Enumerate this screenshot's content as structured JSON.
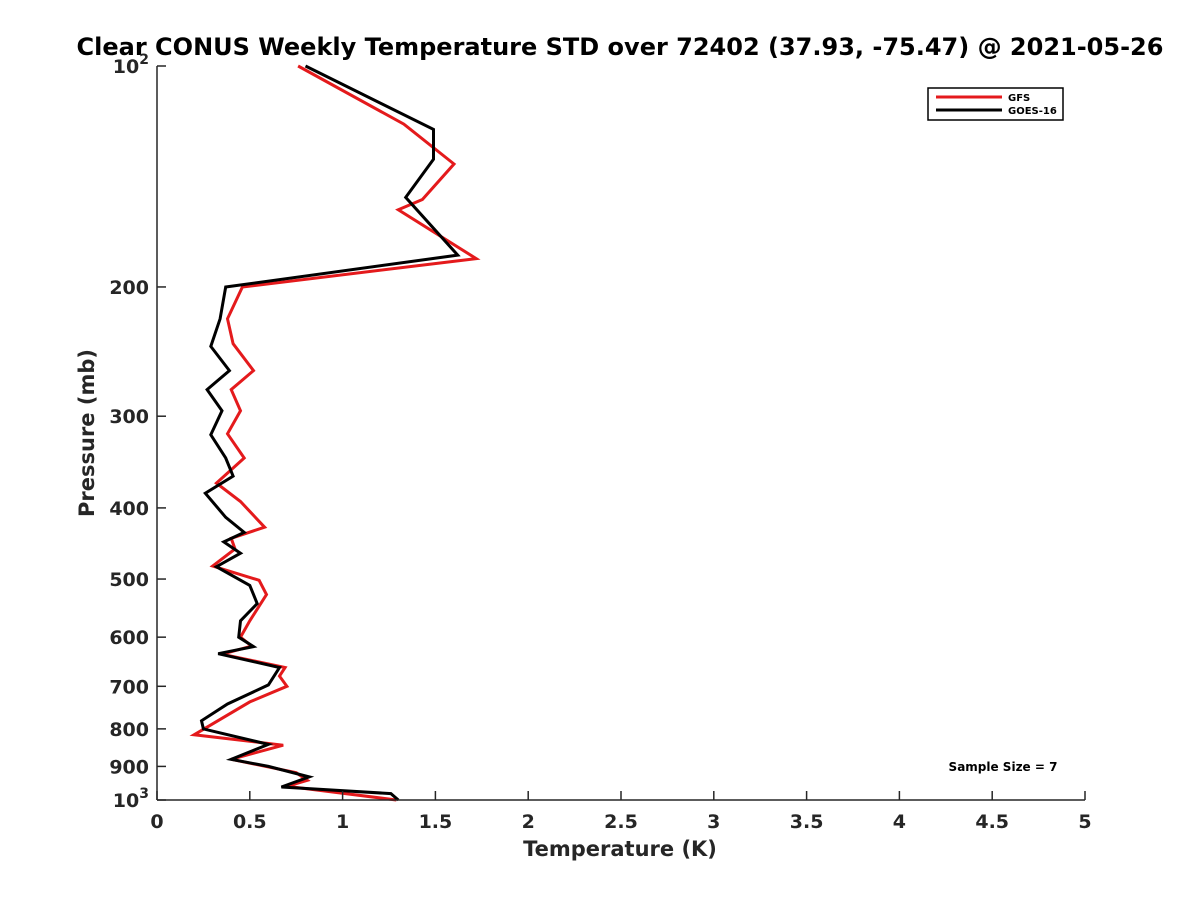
{
  "chart_data": {
    "type": "line",
    "title": "Clear CONUS Weekly Temperature STD over 72402 (37.93, -75.47) @ 2021-05-26",
    "xlabel": "Temperature (K)",
    "ylabel": "Pressure (mb)",
    "xlim": [
      0,
      5
    ],
    "ylim": [
      100,
      1000
    ],
    "yscale": "log",
    "y_reversed": true,
    "xticks": [
      0,
      0.5,
      1,
      1.5,
      2,
      2.5,
      3,
      3.5,
      4,
      4.5,
      5
    ],
    "xtick_labels": [
      "0",
      "0.5",
      "1",
      "1.5",
      "2",
      "2.5",
      "3",
      "3.5",
      "4",
      "4.5",
      "5"
    ],
    "yticks": [
      100,
      200,
      300,
      400,
      500,
      600,
      700,
      800,
      900,
      1000
    ],
    "ytick_labels": [
      {
        "base": "10",
        "exp": "2"
      },
      {
        "base": "200",
        "exp": ""
      },
      {
        "base": "300",
        "exp": ""
      },
      {
        "base": "400",
        "exp": ""
      },
      {
        "base": "500",
        "exp": ""
      },
      {
        "base": "600",
        "exp": ""
      },
      {
        "base": "700",
        "exp": ""
      },
      {
        "base": "800",
        "exp": ""
      },
      {
        "base": "900",
        "exp": ""
      },
      {
        "base": "10",
        "exp": "3"
      }
    ],
    "legend": {
      "position": "top-right",
      "entries": [
        "GFS",
        "GOES-16"
      ]
    },
    "annotation": "Sample Size = 7",
    "series": [
      {
        "name": "GFS",
        "color": "#e41a1c",
        "points": [
          [
            0.76,
            100
          ],
          [
            1.33,
            120
          ],
          [
            1.6,
            136
          ],
          [
            1.43,
            152
          ],
          [
            1.3,
            157
          ],
          [
            1.72,
            183
          ],
          [
            0.46,
            200
          ],
          [
            0.38,
            221
          ],
          [
            0.41,
            239
          ],
          [
            0.52,
            260
          ],
          [
            0.4,
            276
          ],
          [
            0.45,
            295
          ],
          [
            0.38,
            317
          ],
          [
            0.47,
            342
          ],
          [
            0.32,
            370
          ],
          [
            0.45,
            392
          ],
          [
            0.58,
            425
          ],
          [
            0.4,
            440
          ],
          [
            0.42,
            455
          ],
          [
            0.3,
            480
          ],
          [
            0.55,
            502
          ],
          [
            0.59,
            525
          ],
          [
            0.5,
            570
          ],
          [
            0.45,
            600
          ],
          [
            0.51,
            617
          ],
          [
            0.35,
            633
          ],
          [
            0.69,
            660
          ],
          [
            0.66,
            678
          ],
          [
            0.7,
            700
          ],
          [
            0.5,
            735
          ],
          [
            0.2,
            815
          ],
          [
            0.68,
            842
          ],
          [
            0.4,
            880
          ],
          [
            0.75,
            918
          ],
          [
            0.81,
            940
          ],
          [
            0.7,
            958
          ],
          [
            1.29,
            1000
          ]
        ]
      },
      {
        "name": "GOES-16",
        "color": "#000000",
        "points": [
          [
            0.8,
            100
          ],
          [
            1.49,
            122
          ],
          [
            1.49,
            134
          ],
          [
            1.34,
            151
          ],
          [
            1.62,
            181
          ],
          [
            0.37,
            200
          ],
          [
            0.34,
            221
          ],
          [
            0.29,
            241
          ],
          [
            0.39,
            260
          ],
          [
            0.27,
            276
          ],
          [
            0.35,
            295
          ],
          [
            0.29,
            318
          ],
          [
            0.37,
            342
          ],
          [
            0.41,
            362
          ],
          [
            0.26,
            382
          ],
          [
            0.37,
            412
          ],
          [
            0.47,
            432
          ],
          [
            0.36,
            445
          ],
          [
            0.45,
            461
          ],
          [
            0.32,
            481
          ],
          [
            0.5,
            510
          ],
          [
            0.54,
            540
          ],
          [
            0.45,
            570
          ],
          [
            0.44,
            600
          ],
          [
            0.52,
            618
          ],
          [
            0.33,
            632
          ],
          [
            0.66,
            660
          ],
          [
            0.6,
            697
          ],
          [
            0.38,
            740
          ],
          [
            0.24,
            780
          ],
          [
            0.25,
            800
          ],
          [
            0.6,
            840
          ],
          [
            0.4,
            880
          ],
          [
            0.6,
            900
          ],
          [
            0.82,
            930
          ],
          [
            0.67,
            960
          ],
          [
            1.26,
            980
          ],
          [
            1.3,
            1000
          ]
        ]
      }
    ]
  }
}
